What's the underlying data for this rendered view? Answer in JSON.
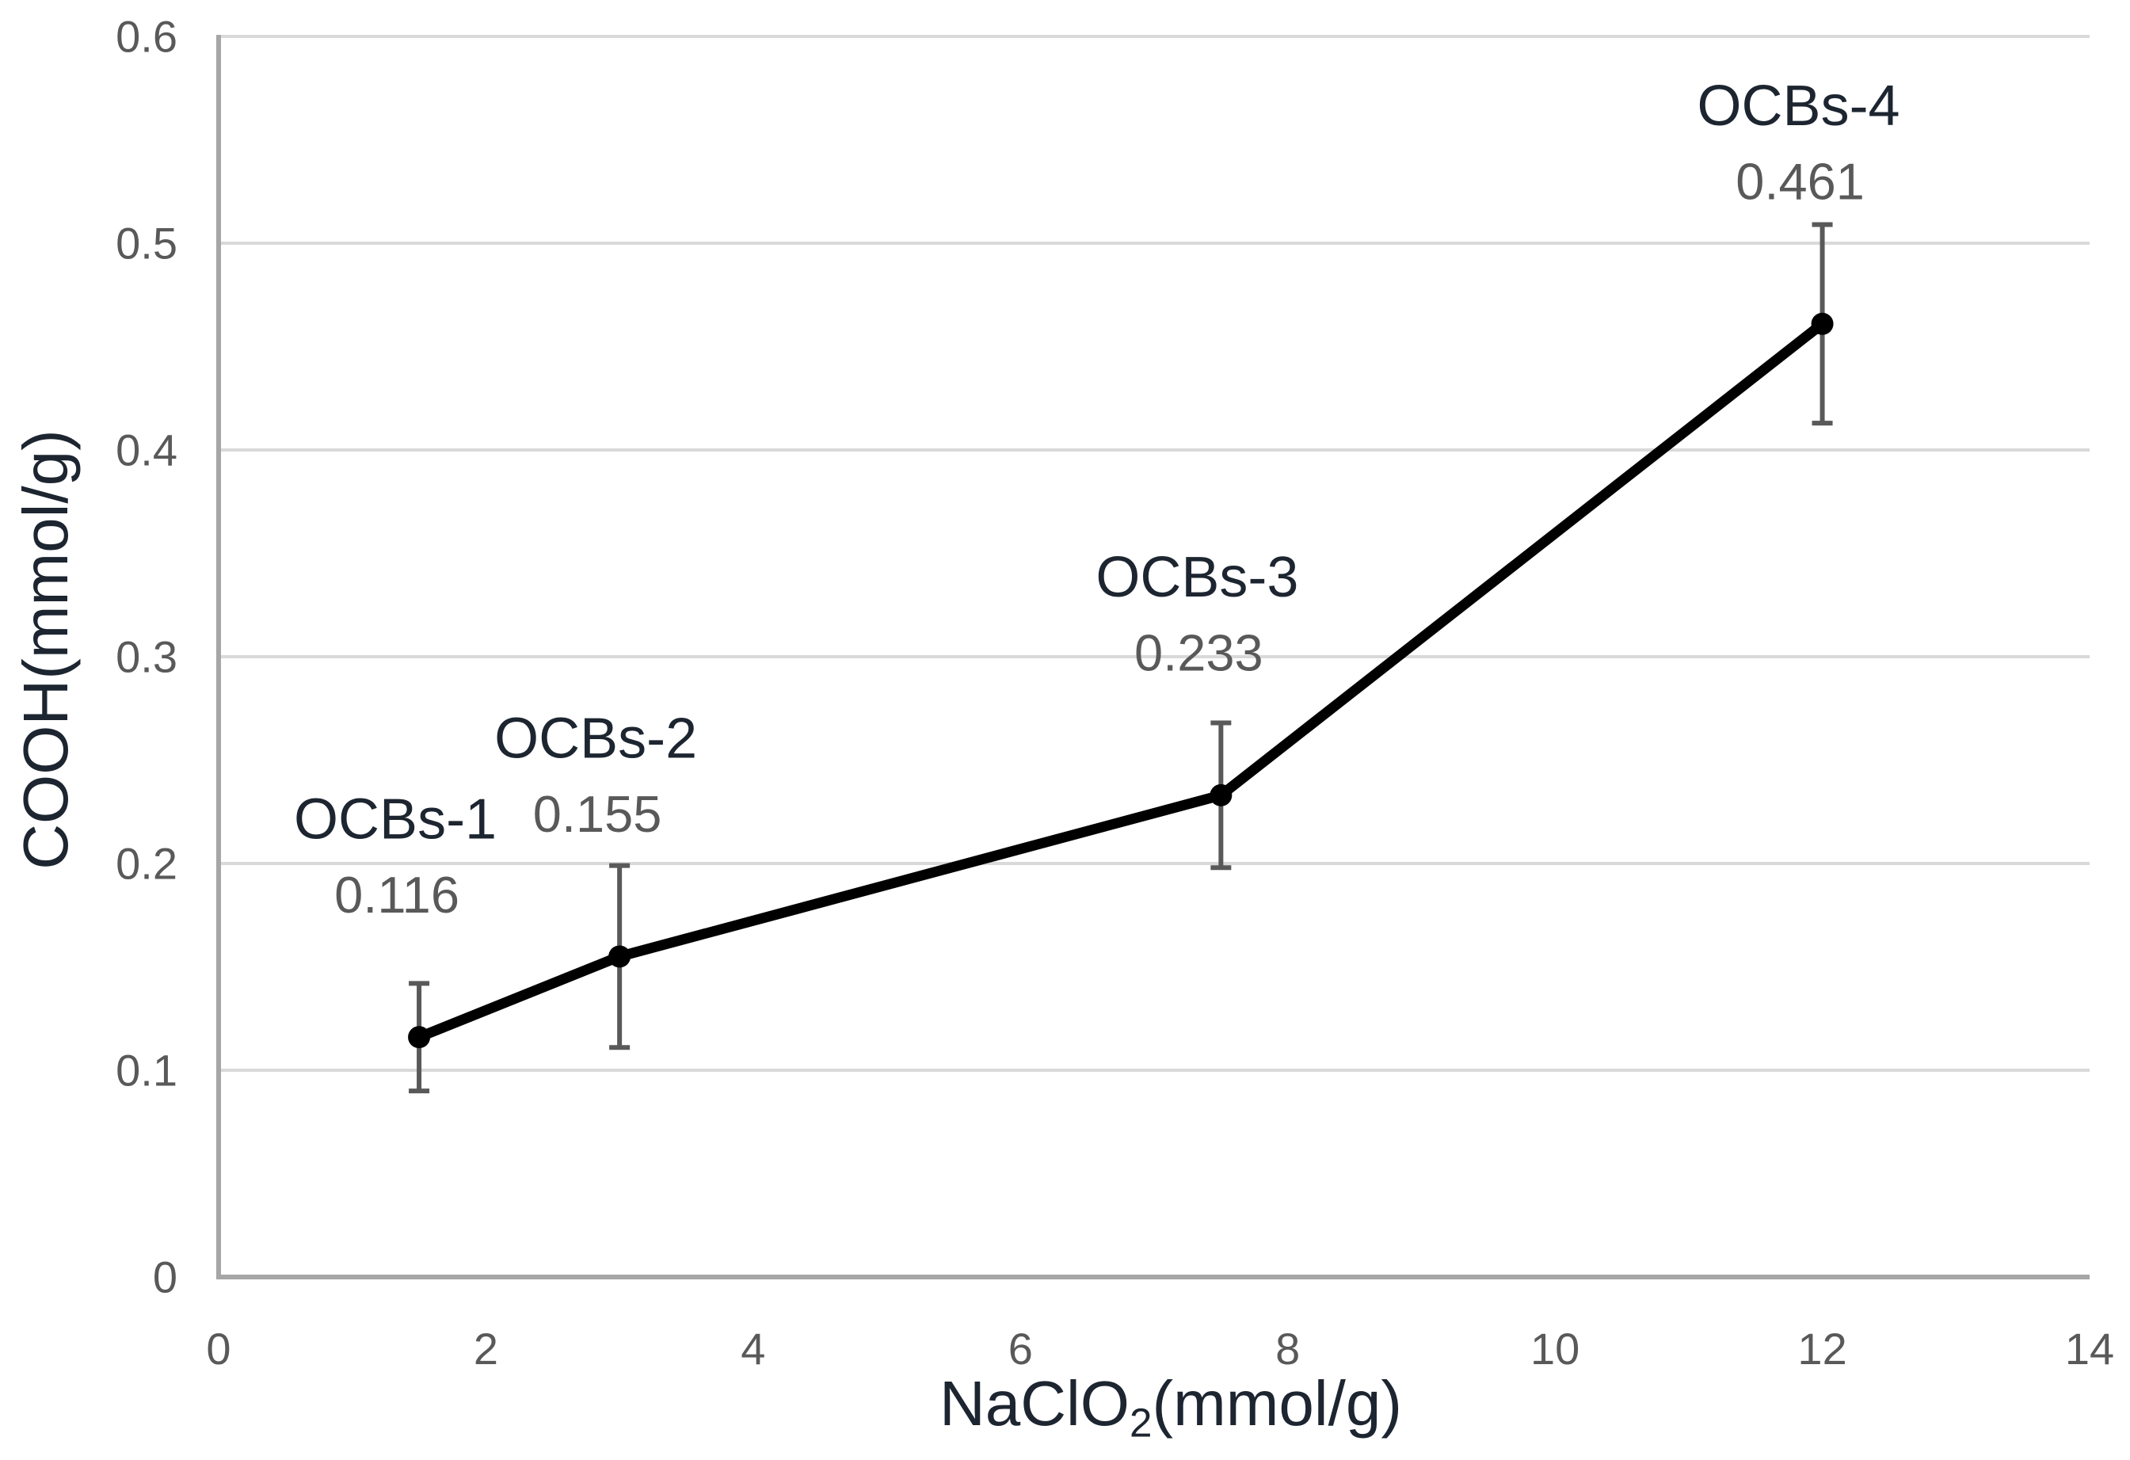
{
  "chart_data": {
    "type": "line",
    "title": "",
    "xlabel": "NaClO2(mmol/g)",
    "xlabel_parts": {
      "pre": "NaClO",
      "sub": "2",
      "post": "(mmol/g)"
    },
    "ylabel": "COOH(mmol/g)",
    "xlim": [
      0,
      14
    ],
    "ylim": [
      0,
      0.6
    ],
    "x_ticks": [
      0,
      2,
      4,
      6,
      8,
      10,
      12,
      14
    ],
    "y_ticks": [
      {
        "value": 0,
        "label": "0"
      },
      {
        "value": 0.1,
        "label": "0.1"
      },
      {
        "value": 0.2,
        "label": "0.2"
      },
      {
        "value": 0.3,
        "label": "0.3"
      },
      {
        "value": 0.4,
        "label": "0.4"
      },
      {
        "value": 0.5,
        "label": "0.5"
      },
      {
        "value": 0.6,
        "label": "0.6"
      }
    ],
    "grid": "horizontal",
    "legend": "none",
    "series": [
      {
        "name": "COOH",
        "marker": "circle",
        "points": [
          {
            "x": 1.5,
            "y": 0.116,
            "error": 0.026,
            "label": "OCBs-1",
            "value_label": "0.116"
          },
          {
            "x": 3,
            "y": 0.155,
            "error": 0.044,
            "label": "OCBs-2",
            "value_label": "0.155"
          },
          {
            "x": 7.5,
            "y": 0.233,
            "error": 0.035,
            "label": "OCBs-3",
            "value_label": "0.233"
          },
          {
            "x": 12,
            "y": 0.461,
            "error": 0.048,
            "label": "OCBs-4",
            "value_label": "0.461"
          }
        ]
      }
    ],
    "colors": {
      "background": "#ffffff",
      "line": "#000000",
      "marker": "#000000",
      "error_bar": "#595959",
      "gridline": "#d9d9d9",
      "axis_line": "#a6a6a6",
      "tick_label": "#595959",
      "value_label": "#595959",
      "point_label": "#1c2530",
      "axis_title": "#1c2530"
    }
  }
}
